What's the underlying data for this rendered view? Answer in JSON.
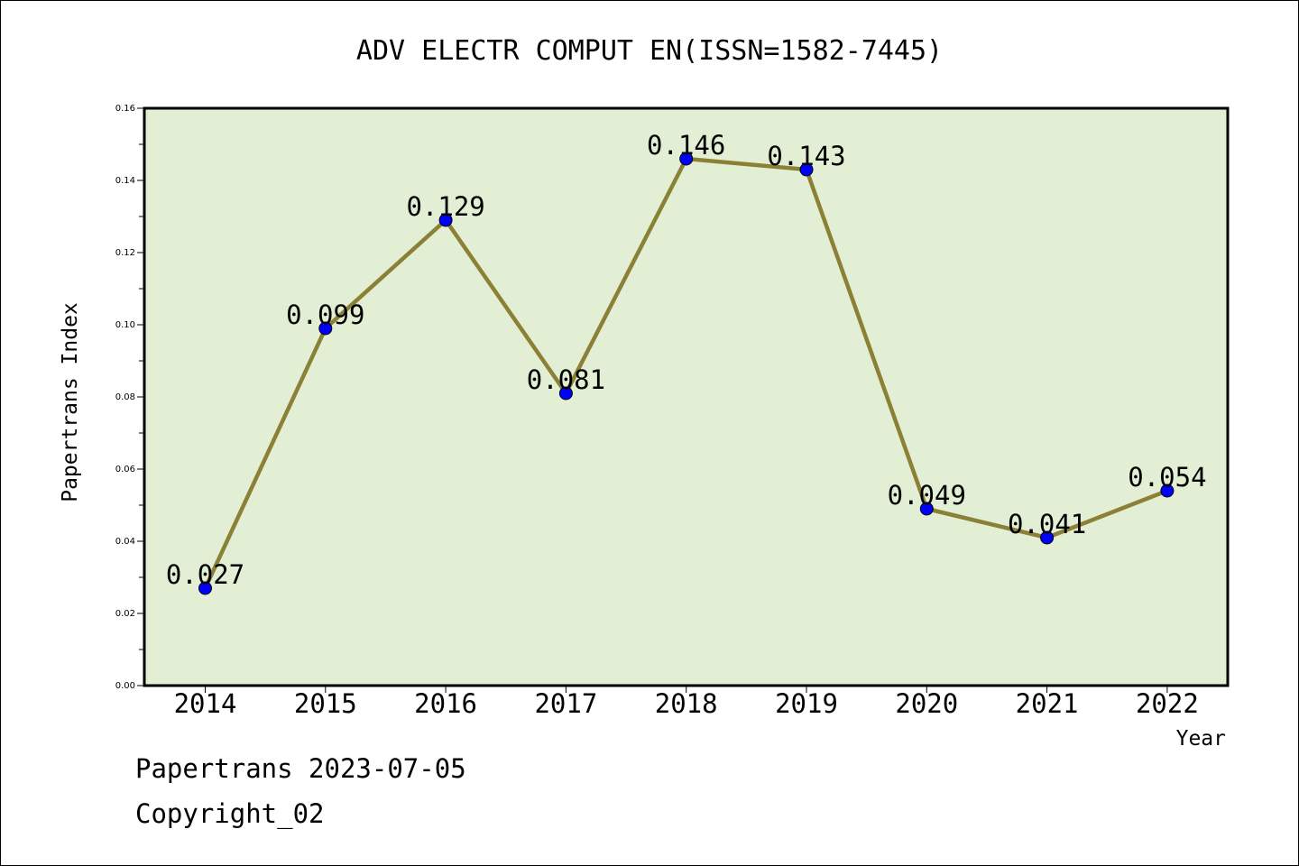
{
  "chart_data": {
    "type": "line",
    "title": "ADV ELECTR COMPUT EN(ISSN=1582-7445)",
    "xlabel": "Year",
    "ylabel": "Papertrans Index",
    "categories": [
      "2014",
      "2015",
      "2016",
      "2017",
      "2018",
      "2019",
      "2020",
      "2021",
      "2022"
    ],
    "values": [
      0.027,
      0.099,
      0.129,
      0.081,
      0.146,
      0.143,
      0.049,
      0.041,
      0.054
    ],
    "data_labels": [
      "0.027",
      "0.099",
      "0.129",
      "0.081",
      "0.146",
      "0.143",
      "0.049",
      "0.041",
      "0.054"
    ],
    "ylim": [
      0,
      0.16
    ],
    "yticks": [
      "0.00",
      "0.02",
      "0.04",
      "0.06",
      "0.08",
      "0.10",
      "0.12",
      "0.14",
      "0.16"
    ],
    "grid": false,
    "colors": {
      "plot_background": "#e2efd5",
      "line": "#8b8036",
      "marker": "#0000ff"
    }
  },
  "footer": {
    "source": "Papertrans 2023-07-05",
    "copyright": "Copyright_02"
  }
}
